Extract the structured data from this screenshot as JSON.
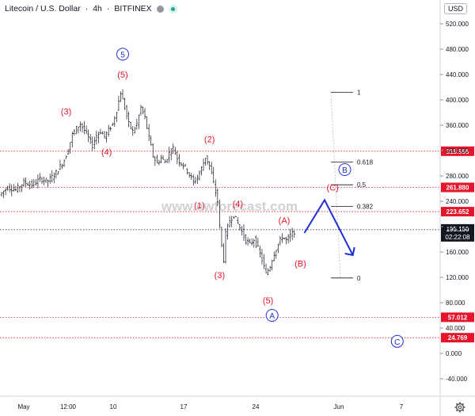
{
  "header": {
    "symbol": "Litecoin / U.S. Dollar",
    "interval": "4h",
    "exchange": "BITFINEX",
    "currency_button": "USD"
  },
  "watermark": "www.ewforecast.com",
  "colors": {
    "candle": "#131722",
    "wave_red": "#e5162c",
    "wave_blue": "#1e2fd6",
    "level_line": "#e5162c",
    "price_line": "#131722",
    "fib_line": "#131722",
    "grid": "#e6e6e6"
  },
  "chart_data": {
    "type": "candlestick",
    "xlabel": "",
    "ylabel": "",
    "x_ticks": [
      "May",
      "12:00",
      "10",
      "17",
      "24",
      "Jun",
      "7"
    ],
    "y_ticks": [
      520,
      480,
      440,
      400,
      360,
      320,
      280,
      240,
      200,
      160,
      120,
      80,
      40,
      0,
      -40
    ],
    "ylim": [
      -40,
      540
    ],
    "price_path": [
      {
        "x": 0,
        "y": 250
      },
      {
        "x": 4,
        "y": 262
      },
      {
        "x": 8,
        "y": 258
      },
      {
        "x": 12,
        "y": 270
      },
      {
        "x": 16,
        "y": 266
      },
      {
        "x": 20,
        "y": 275
      },
      {
        "x": 24,
        "y": 272
      },
      {
        "x": 28,
        "y": 285
      },
      {
        "x": 32,
        "y": 305
      },
      {
        "x": 34,
        "y": 322
      },
      {
        "x": 36,
        "y": 345
      },
      {
        "x": 38,
        "y": 355
      },
      {
        "x": 40,
        "y": 362
      },
      {
        "x": 42,
        "y": 352
      },
      {
        "x": 44,
        "y": 340
      },
      {
        "x": 46,
        "y": 328
      },
      {
        "x": 48,
        "y": 344
      },
      {
        "x": 50,
        "y": 350
      },
      {
        "x": 52,
        "y": 342
      },
      {
        "x": 54,
        "y": 352
      },
      {
        "x": 56,
        "y": 362
      },
      {
        "x": 58,
        "y": 384
      },
      {
        "x": 60,
        "y": 412
      },
      {
        "x": 62,
        "y": 388
      },
      {
        "x": 64,
        "y": 362
      },
      {
        "x": 66,
        "y": 350
      },
      {
        "x": 68,
        "y": 362
      },
      {
        "x": 70,
        "y": 388
      },
      {
        "x": 72,
        "y": 372
      },
      {
        "x": 74,
        "y": 340
      },
      {
        "x": 76,
        "y": 312
      },
      {
        "x": 78,
        "y": 300
      },
      {
        "x": 80,
        "y": 308
      },
      {
        "x": 82,
        "y": 302
      },
      {
        "x": 84,
        "y": 316
      },
      {
        "x": 86,
        "y": 324
      },
      {
        "x": 88,
        "y": 308
      },
      {
        "x": 90,
        "y": 300
      },
      {
        "x": 92,
        "y": 294
      },
      {
        "x": 94,
        "y": 282
      },
      {
        "x": 96,
        "y": 270
      },
      {
        "x": 98,
        "y": 278
      },
      {
        "x": 100,
        "y": 292
      },
      {
        "x": 102,
        "y": 310
      },
      {
        "x": 104,
        "y": 296
      },
      {
        "x": 106,
        "y": 268
      },
      {
        "x": 108,
        "y": 240
      },
      {
        "x": 109,
        "y": 200
      },
      {
        "x": 110,
        "y": 170
      },
      {
        "x": 111,
        "y": 148
      },
      {
        "x": 112,
        "y": 188
      },
      {
        "x": 114,
        "y": 210
      },
      {
        "x": 116,
        "y": 218
      },
      {
        "x": 118,
        "y": 205
      },
      {
        "x": 120,
        "y": 192
      },
      {
        "x": 122,
        "y": 178
      },
      {
        "x": 124,
        "y": 172
      },
      {
        "x": 126,
        "y": 180
      },
      {
        "x": 128,
        "y": 166
      },
      {
        "x": 130,
        "y": 148
      },
      {
        "x": 132,
        "y": 125
      },
      {
        "x": 134,
        "y": 138
      },
      {
        "x": 136,
        "y": 158
      },
      {
        "x": 138,
        "y": 172
      },
      {
        "x": 140,
        "y": 184
      },
      {
        "x": 142,
        "y": 178
      },
      {
        "x": 144,
        "y": 186
      },
      {
        "x": 146,
        "y": 192
      }
    ],
    "horizontal_levels": [
      {
        "label": "318.966",
        "value": 318.966,
        "style": "dotted-red"
      },
      {
        "label": "261.880",
        "value": 261.88,
        "style": "dotted-red"
      },
      {
        "label": "223.652",
        "value": 223.652,
        "style": "dotted-red"
      },
      {
        "label": "57.012",
        "value": 57.012,
        "style": "dotted-red"
      },
      {
        "label": "24.769",
        "value": 24.769,
        "style": "dotted-red"
      }
    ],
    "current_price": {
      "label": "195.150",
      "timer": "02:22:08",
      "value": 195.15
    },
    "fib_levels": [
      {
        "label": "1",
        "value": 412
      },
      {
        "label": "0.618",
        "value": 302
      },
      {
        "label": "0.5",
        "value": 266
      },
      {
        "label": "0.382",
        "value": 232
      },
      {
        "label": "0",
        "value": 119
      }
    ],
    "projection_path": [
      {
        "x": 150,
        "y": 190
      },
      {
        "x": 160,
        "y": 242
      },
      {
        "x": 174,
        "y": 155
      }
    ],
    "wave_labels": [
      {
        "text": "5",
        "x": 60,
        "y": 472,
        "color": "blue",
        "circled": true
      },
      {
        "text": "(5)",
        "x": 60,
        "y": 440,
        "color": "red"
      },
      {
        "text": "(3)",
        "x": 32,
        "y": 382,
        "color": "red"
      },
      {
        "text": "(4)",
        "x": 52,
        "y": 318,
        "color": "red"
      },
      {
        "text": "(2)",
        "x": 103,
        "y": 338,
        "color": "red"
      },
      {
        "text": "(1)",
        "x": 98,
        "y": 234,
        "color": "red"
      },
      {
        "text": "(4)",
        "x": 117,
        "y": 236,
        "color": "red"
      },
      {
        "text": "(3)",
        "x": 108,
        "y": 124,
        "color": "red"
      },
      {
        "text": "(A)",
        "x": 140,
        "y": 210,
        "color": "red"
      },
      {
        "text": "(B)",
        "x": 148,
        "y": 142,
        "color": "red"
      },
      {
        "text": "(5)",
        "x": 132,
        "y": 84,
        "color": "red"
      },
      {
        "text": "A",
        "x": 134,
        "y": 60,
        "color": "blue",
        "circled": true
      },
      {
        "text": "(C)",
        "x": 164,
        "y": 262,
        "color": "red"
      },
      {
        "text": "B",
        "x": 170,
        "y": 290,
        "color": "blue",
        "circled": true
      },
      {
        "text": "C",
        "x": 196,
        "y": 19,
        "color": "blue",
        "circled": true
      }
    ]
  }
}
